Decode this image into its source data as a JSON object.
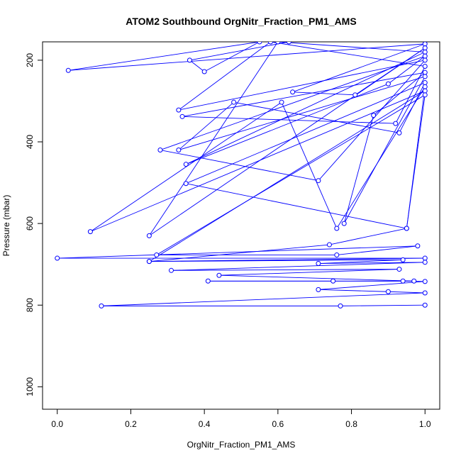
{
  "chart_data": {
    "type": "line",
    "title": "ATOM2 Southbound OrgNitr_Fraction_PM1_AMS",
    "xlabel": "OrgNitr_Fraction_PM1_AMS",
    "ylabel": "Pressure (mbar)",
    "xlim": [
      -0.04,
      1.04
    ],
    "ylim": [
      1055,
      155
    ],
    "y_reversed": true,
    "x_ticks": [
      "0.0",
      "0.2",
      "0.4",
      "0.6",
      "0.8",
      "1.0"
    ],
    "y_ticks": [
      "200",
      "400",
      "600",
      "800",
      "1000"
    ],
    "color": "#0000ff",
    "marker": "open-circle",
    "grid": false,
    "series": [
      {
        "x": [
          0.63,
          0.36,
          0.4,
          0.55,
          0.03,
          1.0,
          0.64,
          0.81,
          1.0,
          0.25,
          0.6,
          1.0,
          0.35,
          0.9,
          1.0,
          0.28,
          0.71,
          1.0,
          0.33,
          0.58,
          1.0,
          0.92,
          0.34,
          1.0,
          0.86,
          0.78,
          1.0,
          0.33,
          0.48,
          0.93,
          1.0,
          0.35,
          0.95,
          1.0,
          0.76,
          0.61,
          0.09,
          1.0,
          0.25,
          0.74,
          0.95,
          1.0,
          0.27,
          0.76,
          0.98,
          0.0,
          1.0,
          0.25,
          0.94,
          0.71,
          1.0,
          0.31,
          0.93,
          0.44,
          0.97,
          0.75,
          0.41,
          0.94,
          1.0,
          0.71,
          0.9,
          1.0,
          0.12,
          0.77,
          1.0
        ],
        "y": [
          155,
          200,
          228,
          155,
          225,
          160,
          278,
          285,
          170,
          630,
          155,
          180,
          455,
          258,
          190,
          420,
          495,
          200,
          322,
          155,
          215,
          355,
          338,
          230,
          335,
          600,
          240,
          420,
          303,
          378,
          255,
          502,
          612,
          265,
          612,
          303,
          620,
          275,
          693,
          652,
          612,
          285,
          677,
          677,
          655,
          685,
          685,
          693,
          689,
          698,
          695,
          715,
          712,
          727,
          741,
          741,
          741,
          741,
          742,
          762,
          767,
          770,
          802,
          802,
          800
        ]
      }
    ]
  }
}
